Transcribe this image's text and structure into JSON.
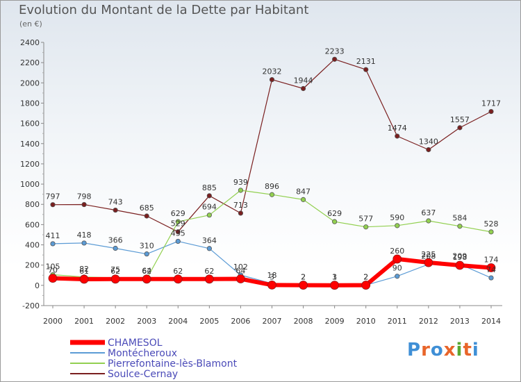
{
  "title": "Evolution du Montant de la Dette par Habitant",
  "subtitle": "(en €)",
  "logo": {
    "text": "Proxiti",
    "colors": [
      "#3f8fd6",
      "#e8652a",
      "#3f8fd6",
      "#e8652a",
      "#5aa832",
      "#e8652a",
      "#3f8fd6"
    ]
  },
  "chart_data": {
    "type": "line",
    "x": [
      2000,
      2001,
      2002,
      2003,
      2004,
      2005,
      2006,
      2007,
      2008,
      2009,
      2010,
      2011,
      2012,
      2013,
      2014
    ],
    "ylim": [
      -200,
      2400
    ],
    "yticks": [
      -200,
      0,
      200,
      400,
      600,
      800,
      1000,
      1200,
      1400,
      1600,
      1800,
      2000,
      2200,
      2400
    ],
    "grid": false,
    "legend_position": "bottom-left",
    "series": [
      {
        "name": "Soulce-Cernay",
        "color": "#7a1f1f",
        "width": 1.2,
        "values": [
          797,
          798,
          743,
          685,
          529,
          885,
          713,
          2032,
          1944,
          2233,
          2131,
          1474,
          1340,
          1557,
          1717
        ]
      },
      {
        "name": "Montécheroux",
        "color": "#5b9bd5",
        "width": 1.2,
        "values": [
          411,
          418,
          366,
          310,
          435,
          364,
          102,
          18,
          2,
          3,
          2,
          90,
          208,
          209,
          74
        ]
      },
      {
        "name": "Pierrefontaine-lès-Blamont",
        "color": "#92d050",
        "width": 1.2,
        "values": [
          105,
          82,
          75,
          64,
          629,
          694,
          939,
          896,
          847,
          629,
          577,
          590,
          637,
          584,
          528
        ]
      },
      {
        "name": "CHAMESOL",
        "color": "#ff0000",
        "width": 6,
        "values": [
          70,
          61,
          62,
          62,
          62,
          62,
          64,
          3,
          2,
          1,
          2,
          260,
          225,
          198,
          174
        ]
      }
    ],
    "legend_order": [
      "CHAMESOL",
      "Montécheroux",
      "Pierrefontaine-lès-Blamont",
      "Soulce-Cernay"
    ]
  }
}
